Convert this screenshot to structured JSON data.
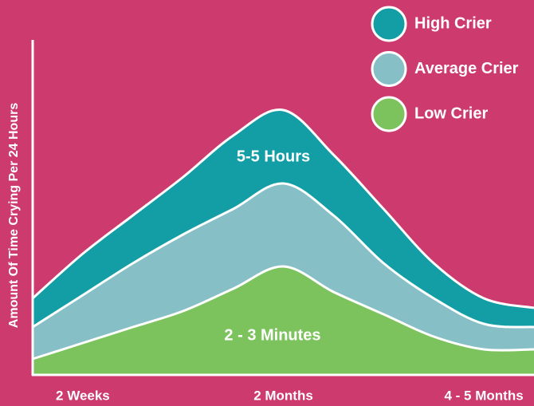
{
  "chart_data": {
    "type": "area",
    "ylabel": "Amount Of Time Crying Per 24 Hours",
    "categories": [
      null,
      "2 Weeks",
      null,
      null,
      null,
      "2 Months",
      null,
      null,
      null,
      "4 - 5 Months",
      null
    ],
    "series": [
      {
        "name": "High Crier",
        "color": "#139ea5",
        "values": [
          24,
          38,
          50,
          62,
          75,
          83,
          69,
          52,
          35,
          24,
          21
        ]
      },
      {
        "name": "Average Crier",
        "color": "#87bfc6",
        "values": [
          15,
          25,
          35,
          44,
          52,
          60,
          50,
          35,
          24,
          16,
          15
        ]
      },
      {
        "name": "Low Crier",
        "color": "#7cc35e",
        "values": [
          5,
          10,
          15,
          20,
          27,
          34,
          26,
          19,
          12,
          8,
          8
        ]
      }
    ],
    "annotations": [
      "5-5 Hours",
      "2 - 3 Minutes"
    ],
    "ylim": [
      0,
      100
    ],
    "background": "#cc3a6e"
  }
}
